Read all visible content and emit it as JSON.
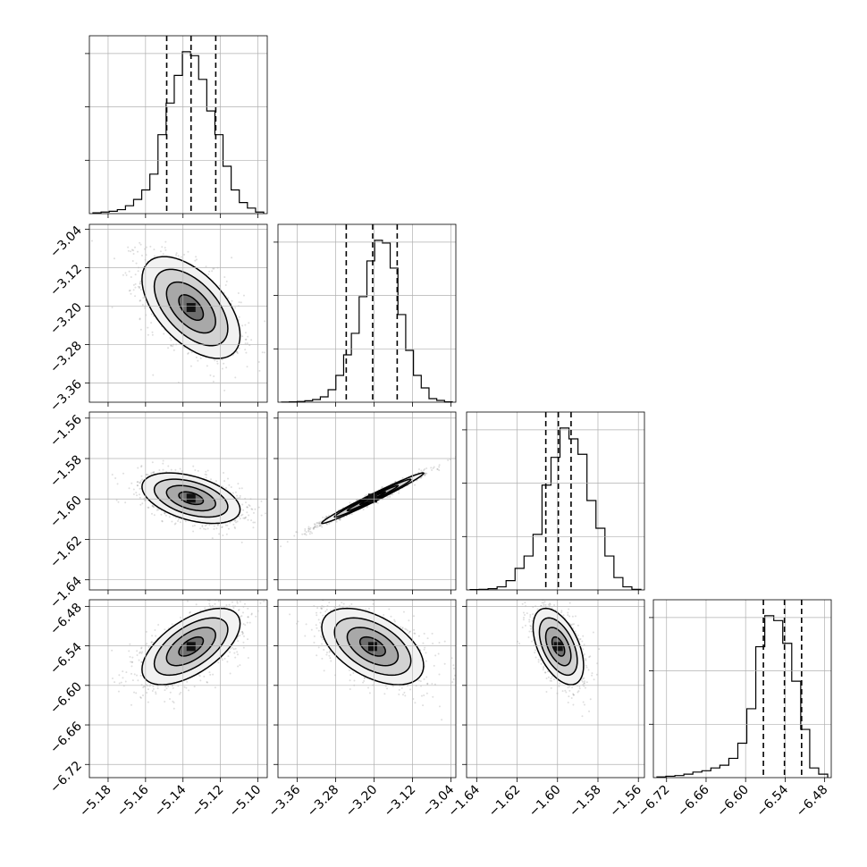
{
  "chart_data": {
    "type": "corner",
    "title": "",
    "parameters": [
      {
        "range": [
          -5.19,
          -5.095
        ],
        "ticks": [
          -5.18,
          -5.16,
          -5.14,
          -5.12,
          -5.1
        ],
        "tick_labels": [
          "−5.18",
          "−5.16",
          "−5.14",
          "−5.12",
          "−5.10"
        ],
        "quantiles": [
          -5.1487,
          -5.1357,
          -5.1225
        ],
        "hist_counts": [
          1,
          2,
          3,
          5,
          10,
          18,
          30,
          50,
          100,
          140,
          175,
          205,
          200,
          170,
          130,
          100,
          60,
          30,
          14,
          7,
          2
        ]
      },
      {
        "range": [
          -3.4,
          -3.03
        ],
        "ticks": [
          -3.36,
          -3.28,
          -3.2,
          -3.12,
          -3.04
        ],
        "tick_labels": [
          "−3.36",
          "−3.28",
          "−3.20",
          "−3.12",
          "−3.04"
        ],
        "quantiles": [
          -3.258,
          -3.203,
          -3.152
        ],
        "hist_counts": [
          1,
          2,
          4,
          8,
          15,
          30,
          70,
          150,
          265,
          385,
          590,
          790,
          905,
          890,
          750,
          490,
          290,
          150,
          80,
          20,
          10,
          2
        ]
      },
      {
        "range": [
          -1.645,
          -1.557
        ],
        "ticks": [
          -1.64,
          -1.62,
          -1.6,
          -1.58,
          -1.56
        ],
        "tick_labels": [
          "−1.64",
          "−1.62",
          "−1.60",
          "−1.58",
          "−1.56"
        ],
        "quantiles": [
          -1.6058,
          -1.5996,
          -1.5933
        ],
        "hist_counts": [
          1,
          2,
          4,
          10,
          30,
          70,
          110,
          180,
          340,
          430,
          525,
          490,
          440,
          290,
          200,
          110,
          40,
          10,
          2
        ]
      },
      {
        "range": [
          -6.74,
          -6.47
        ],
        "ticks": [
          -6.72,
          -6.66,
          -6.6,
          -6.54,
          -6.48
        ],
        "tick_labels": [
          "−6.72",
          "−6.66",
          "−6.60",
          "−6.54",
          "−6.48"
        ],
        "quantiles": [
          -6.573,
          -6.541,
          -6.515
        ],
        "hist_counts": [
          1,
          2,
          3,
          5,
          8,
          10,
          14,
          18,
          28,
          50,
          100,
          190,
          235,
          228,
          195,
          140,
          70,
          14,
          5
        ]
      }
    ],
    "pairs": [
      {
        "x": 0,
        "y": 1,
        "mean": [
          -5.1357,
          -3.203
        ],
        "corr": -0.55
      },
      {
        "x": 0,
        "y": 2,
        "mean": [
          -5.1357,
          -1.5996
        ],
        "corr": -0.45
      },
      {
        "x": 1,
        "y": 2,
        "mean": [
          -3.203,
          -1.5996
        ],
        "corr": 0.985
      },
      {
        "x": 0,
        "y": 3,
        "mean": [
          -5.1357,
          -6.541
        ],
        "corr": 0.6
      },
      {
        "x": 1,
        "y": 3,
        "mean": [
          -3.203,
          -6.541
        ],
        "corr": -0.5
      },
      {
        "x": 2,
        "y": 3,
        "mean": [
          -1.5996,
          -6.541
        ],
        "corr": -0.5
      }
    ],
    "grid": true,
    "legend": "none"
  }
}
